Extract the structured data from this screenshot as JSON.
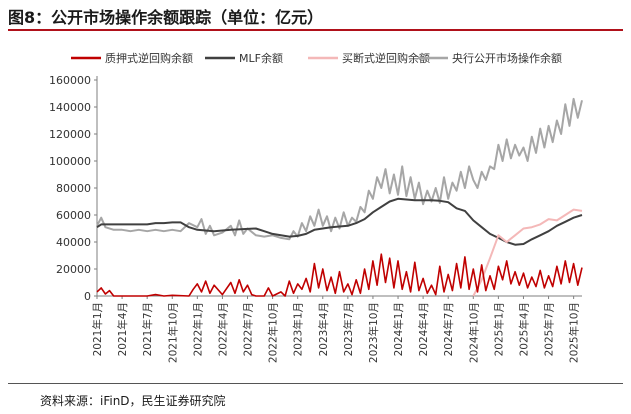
{
  "figure": {
    "title": "图8：公开市场操作余额跟踪（单位：亿元）",
    "source": "资料来源：iFinD，民生证券研究院"
  },
  "chart_data": {
    "type": "line",
    "title": "",
    "xlabel": "",
    "ylabel": "",
    "ylim": [
      0,
      160000
    ],
    "yticks": [
      0,
      20000,
      40000,
      60000,
      80000,
      100000,
      120000,
      140000,
      160000
    ],
    "x_tick_labels": [
      "2021年1月",
      "2021年4月",
      "2021年7月",
      "2021年10月",
      "2022年1月",
      "2022年4月",
      "2022年7月",
      "2022年10月",
      "2023年1月",
      "2023年4月",
      "2023年7月",
      "2023年10月",
      "2024年1月",
      "2024年4月",
      "2024年7月",
      "2024年10月",
      "2025年1月",
      "2025年4月",
      "2025年7月",
      "2025年10月"
    ],
    "x_range": [
      "2021-01",
      "2025-11"
    ],
    "grid": false,
    "legend_position": "top",
    "series": [
      {
        "name": "质押式逆回购余额",
        "color": "#c00000",
        "points": [
          [
            "2021-01",
            3000
          ],
          [
            "2021-01",
            6000
          ],
          [
            "2021-02",
            1500
          ],
          [
            "2021-02",
            4000
          ],
          [
            "2021-03",
            0
          ],
          [
            "2021-06",
            0
          ],
          [
            "2021-07",
            0
          ],
          [
            "2021-08",
            1000
          ],
          [
            "2021-09",
            0
          ],
          [
            "2021-10",
            500
          ],
          [
            "2021-12",
            0
          ],
          [
            "2021-12",
            5000
          ],
          [
            "2022-01",
            9000
          ],
          [
            "2022-01",
            3000
          ],
          [
            "2022-02",
            11000
          ],
          [
            "2022-02",
            2000
          ],
          [
            "2022-03",
            8000
          ],
          [
            "2022-04",
            1000
          ],
          [
            "2022-05",
            10000
          ],
          [
            "2022-05",
            2000
          ],
          [
            "2022-06",
            12000
          ],
          [
            "2022-06",
            3000
          ],
          [
            "2022-07",
            8000
          ],
          [
            "2022-07",
            1000
          ],
          [
            "2022-08",
            0
          ],
          [
            "2022-09",
            0
          ],
          [
            "2022-09",
            6000
          ],
          [
            "2022-10",
            0
          ],
          [
            "2022-11",
            3000
          ],
          [
            "2022-11",
            0
          ],
          [
            "2022-12",
            11000
          ],
          [
            "2022-12",
            2000
          ],
          [
            "2023-01",
            9000
          ],
          [
            "2023-01",
            5000
          ],
          [
            "2023-02",
            13000
          ],
          [
            "2023-02",
            3000
          ],
          [
            "2023-03",
            24000
          ],
          [
            "2023-03",
            6000
          ],
          [
            "2023-04",
            20000
          ],
          [
            "2023-04",
            4000
          ],
          [
            "2023-05",
            14000
          ],
          [
            "2023-05",
            2000
          ],
          [
            "2023-06",
            18000
          ],
          [
            "2023-06",
            3000
          ],
          [
            "2023-07",
            9000
          ],
          [
            "2023-07",
            1000
          ],
          [
            "2023-08",
            12000
          ],
          [
            "2023-08",
            2000
          ],
          [
            "2023-09",
            20000
          ],
          [
            "2023-09",
            5000
          ],
          [
            "2023-10",
            26000
          ],
          [
            "2023-10",
            8000
          ],
          [
            "2023-11",
            31000
          ],
          [
            "2023-11",
            10000
          ],
          [
            "2023-12",
            28000
          ],
          [
            "2023-12",
            6000
          ],
          [
            "2024-01",
            26000
          ],
          [
            "2024-01",
            5000
          ],
          [
            "2024-02",
            18000
          ],
          [
            "2024-02",
            3000
          ],
          [
            "2024-03",
            25000
          ],
          [
            "2024-03",
            4000
          ],
          [
            "2024-04",
            13000
          ],
          [
            "2024-04",
            2000
          ],
          [
            "2024-05",
            8000
          ],
          [
            "2024-05",
            1000
          ],
          [
            "2024-06",
            22000
          ],
          [
            "2024-06",
            3000
          ],
          [
            "2024-07",
            16000
          ],
          [
            "2024-07",
            4000
          ],
          [
            "2024-08",
            24000
          ],
          [
            "2024-08",
            6000
          ],
          [
            "2024-09",
            29000
          ],
          [
            "2024-09",
            5000
          ],
          [
            "2024-10",
            20000
          ],
          [
            "2024-10",
            3000
          ],
          [
            "2024-11",
            23000
          ],
          [
            "2024-11",
            4000
          ],
          [
            "2024-12",
            15000
          ],
          [
            "2024-12",
            5000
          ],
          [
            "2025-01",
            22000
          ],
          [
            "2025-01",
            12000
          ],
          [
            "2025-02",
            26000
          ],
          [
            "2025-02",
            9000
          ],
          [
            "2025-03",
            18000
          ],
          [
            "2025-03",
            8000
          ],
          [
            "2025-04",
            17000
          ],
          [
            "2025-04",
            6000
          ],
          [
            "2025-05",
            14000
          ],
          [
            "2025-05",
            7000
          ],
          [
            "2025-06",
            19000
          ],
          [
            "2025-06",
            6000
          ],
          [
            "2025-07",
            15000
          ],
          [
            "2025-07",
            7000
          ],
          [
            "2025-08",
            22000
          ],
          [
            "2025-08",
            9000
          ],
          [
            "2025-09",
            26000
          ],
          [
            "2025-09",
            10000
          ],
          [
            "2025-10",
            24000
          ],
          [
            "2025-10",
            8000
          ],
          [
            "2025-11",
            21000
          ]
        ]
      },
      {
        "name": "MLF余额",
        "color": "#404040",
        "points": [
          [
            "2021-01",
            51000
          ],
          [
            "2021-01",
            53000
          ],
          [
            "2021-02",
            53000
          ],
          [
            "2021-06",
            53000
          ],
          [
            "2021-07",
            53000
          ],
          [
            "2021-08",
            54000
          ],
          [
            "2021-09",
            54000
          ],
          [
            "2021-10",
            54500
          ],
          [
            "2021-11",
            54500
          ],
          [
            "2021-12",
            51000
          ],
          [
            "2022-01",
            49000
          ],
          [
            "2022-03",
            48000
          ],
          [
            "2022-05",
            49000
          ],
          [
            "2022-08",
            50000
          ],
          [
            "2022-09",
            48000
          ],
          [
            "2022-10",
            46000
          ],
          [
            "2022-12",
            44000
          ],
          [
            "2023-01",
            44500
          ],
          [
            "2023-02",
            46000
          ],
          [
            "2023-03",
            49000
          ],
          [
            "2023-05",
            51000
          ],
          [
            "2023-07",
            52000
          ],
          [
            "2023-08",
            54000
          ],
          [
            "2023-09",
            57000
          ],
          [
            "2023-10",
            62000
          ],
          [
            "2023-11",
            66000
          ],
          [
            "2023-12",
            70000
          ],
          [
            "2024-01",
            72000
          ],
          [
            "2024-03",
            71000
          ],
          [
            "2024-05",
            71000
          ],
          [
            "2024-06",
            70500
          ],
          [
            "2024-07",
            69500
          ],
          [
            "2024-08",
            65000
          ],
          [
            "2024-09",
            63000
          ],
          [
            "2024-10",
            56000
          ],
          [
            "2024-11",
            51000
          ],
          [
            "2024-12",
            46000
          ],
          [
            "2025-01",
            43000
          ],
          [
            "2025-02",
            40000
          ],
          [
            "2025-03",
            38000
          ],
          [
            "2025-04",
            38500
          ],
          [
            "2025-05",
            42000
          ],
          [
            "2025-06",
            45000
          ],
          [
            "2025-07",
            48000
          ],
          [
            "2025-08",
            52000
          ],
          [
            "2025-09",
            55000
          ],
          [
            "2025-10",
            58000
          ],
          [
            "2025-11",
            60000
          ]
        ]
      },
      {
        "name": "买断式逆回购余额",
        "color": "#f4b8b8",
        "points": [
          [
            "2024-10",
            0
          ],
          [
            "2024-11",
            12000
          ],
          [
            "2024-12",
            28000
          ],
          [
            "2025-01",
            45000
          ],
          [
            "2025-02",
            40000
          ],
          [
            "2025-03",
            45000
          ],
          [
            "2025-04",
            50000
          ],
          [
            "2025-05",
            51000
          ],
          [
            "2025-06",
            53000
          ],
          [
            "2025-07",
            57000
          ],
          [
            "2025-08",
            56000
          ],
          [
            "2025-09",
            60000
          ],
          [
            "2025-10",
            64000
          ],
          [
            "2025-11",
            63000
          ]
        ]
      },
      {
        "name": "央行公开市场操作余额",
        "color": "#a6a6a6",
        "points": [
          [
            "2021-01",
            52000
          ],
          [
            "2021-01",
            58000
          ],
          [
            "2021-02",
            51000
          ],
          [
            "2021-03",
            49000
          ],
          [
            "2021-04",
            49000
          ],
          [
            "2021-05",
            48000
          ],
          [
            "2021-06",
            49000
          ],
          [
            "2021-07",
            48000
          ],
          [
            "2021-08",
            49000
          ],
          [
            "2021-09",
            48000
          ],
          [
            "2021-10",
            49000
          ],
          [
            "2021-11",
            48000
          ],
          [
            "2021-12",
            54000
          ],
          [
            "2022-01",
            51000
          ],
          [
            "2022-01",
            57000
          ],
          [
            "2022-02",
            46000
          ],
          [
            "2022-02",
            52000
          ],
          [
            "2022-03",
            45000
          ],
          [
            "2022-04",
            47000
          ],
          [
            "2022-05",
            52000
          ],
          [
            "2022-05",
            45000
          ],
          [
            "2022-06",
            56000
          ],
          [
            "2022-06",
            46000
          ],
          [
            "2022-07",
            50000
          ],
          [
            "2022-08",
            45000
          ],
          [
            "2022-09",
            44000
          ],
          [
            "2022-10",
            45000
          ],
          [
            "2022-11",
            43000
          ],
          [
            "2022-12",
            42000
          ],
          [
            "2022-12",
            48000
          ],
          [
            "2023-01",
            44000
          ],
          [
            "2023-01",
            54000
          ],
          [
            "2023-02",
            48000
          ],
          [
            "2023-02",
            59000
          ],
          [
            "2023-03",
            52000
          ],
          [
            "2023-03",
            64000
          ],
          [
            "2023-04",
            52000
          ],
          [
            "2023-04",
            59000
          ],
          [
            "2023-05",
            48000
          ],
          [
            "2023-05",
            58000
          ],
          [
            "2023-06",
            50000
          ],
          [
            "2023-06",
            62000
          ],
          [
            "2023-07",
            52000
          ],
          [
            "2023-07",
            58000
          ],
          [
            "2023-08",
            55000
          ],
          [
            "2023-08",
            66000
          ],
          [
            "2023-09",
            62000
          ],
          [
            "2023-09",
            78000
          ],
          [
            "2023-10",
            72000
          ],
          [
            "2023-10",
            88000
          ],
          [
            "2023-11",
            80000
          ],
          [
            "2023-11",
            94000
          ],
          [
            "2023-12",
            76000
          ],
          [
            "2023-12",
            90000
          ],
          [
            "2024-01",
            75000
          ],
          [
            "2024-01",
            96000
          ],
          [
            "2024-02",
            74000
          ],
          [
            "2024-02",
            88000
          ],
          [
            "2024-03",
            72000
          ],
          [
            "2024-03",
            84000
          ],
          [
            "2024-04",
            68000
          ],
          [
            "2024-04",
            78000
          ],
          [
            "2024-05",
            70000
          ],
          [
            "2024-05",
            80000
          ],
          [
            "2024-06",
            69000
          ],
          [
            "2024-06",
            88000
          ],
          [
            "2024-07",
            72000
          ],
          [
            "2024-07",
            84000
          ],
          [
            "2024-08",
            78000
          ],
          [
            "2024-08",
            92000
          ],
          [
            "2024-09",
            80000
          ],
          [
            "2024-09",
            96000
          ],
          [
            "2024-10",
            86000
          ],
          [
            "2024-10",
            80000
          ],
          [
            "2024-11",
            92000
          ],
          [
            "2024-11",
            86000
          ],
          [
            "2024-12",
            96000
          ],
          [
            "2024-12",
            94000
          ],
          [
            "2025-01",
            112000
          ],
          [
            "2025-01",
            100000
          ],
          [
            "2025-02",
            116000
          ],
          [
            "2025-02",
            102000
          ],
          [
            "2025-03",
            112000
          ],
          [
            "2025-03",
            104000
          ],
          [
            "2025-04",
            110000
          ],
          [
            "2025-04",
            100000
          ],
          [
            "2025-05",
            118000
          ],
          [
            "2025-05",
            106000
          ],
          [
            "2025-06",
            124000
          ],
          [
            "2025-06",
            110000
          ],
          [
            "2025-07",
            126000
          ],
          [
            "2025-07",
            114000
          ],
          [
            "2025-08",
            130000
          ],
          [
            "2025-08",
            120000
          ],
          [
            "2025-09",
            142000
          ],
          [
            "2025-09",
            126000
          ],
          [
            "2025-10",
            146000
          ],
          [
            "2025-10",
            132000
          ],
          [
            "2025-11",
            145000
          ]
        ]
      }
    ]
  }
}
